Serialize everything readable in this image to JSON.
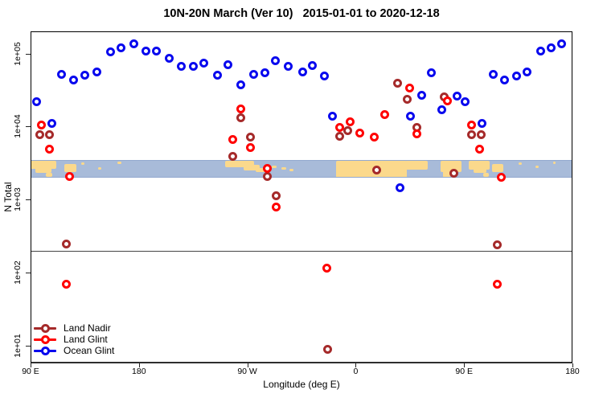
{
  "title": "10N-20N March (Ver 10)   2015-01-01 to 2020-12-18",
  "chart_data": {
    "type": "scatter",
    "title": "10N-20N March (Ver 10)   2015-01-01 to 2020-12-18",
    "xlabel": "Longitude (deg E)",
    "ylabel": "N Total",
    "y_scale": "log10",
    "ylim": [
      10,
      100000
    ],
    "y_ticks": [
      "1e+01",
      "1e+02",
      "1e+03",
      "1e+04",
      "1e+05"
    ],
    "x_axis_span_deg": 450,
    "x_ticks": [
      {
        "deg": 0,
        "label": "90 E"
      },
      {
        "deg": 90,
        "label": "180"
      },
      {
        "deg": 180,
        "label": "90 W"
      },
      {
        "deg": 270,
        "label": "0"
      },
      {
        "deg": 360,
        "label": "90 E"
      },
      {
        "deg": 450,
        "label": "180"
      }
    ],
    "reference_line_n": 200,
    "grid": "off",
    "legend_position": "bottom-left",
    "map_strip": {
      "ocean_color": "#A8BBD9",
      "land_color": "#FBD98C",
      "n_top": 3500,
      "n_bottom": 2000,
      "land_patches": [
        [
          0,
          21.4,
          0,
          10
        ],
        [
          4,
          13.4,
          7,
          8
        ],
        [
          12.7,
          5.4,
          15,
          5
        ],
        [
          28,
          10,
          4,
          10
        ],
        [
          42,
          2.7,
          2,
          3
        ],
        [
          56,
          2.7,
          8,
          3
        ],
        [
          72,
          3.3,
          1,
          3
        ],
        [
          161.6,
          24,
          0,
          8
        ],
        [
          176.9,
          13.4,
          5,
          7
        ],
        [
          186.9,
          12,
          9,
          5
        ],
        [
          200.3,
          4,
          6,
          3
        ],
        [
          208.3,
          4,
          8,
          3
        ],
        [
          215,
          3.3,
          10,
          3
        ],
        [
          253.7,
          58.8,
          0,
          22
        ],
        [
          311.1,
          18.7,
          0,
          11
        ],
        [
          340.5,
          17.4,
          0,
          14
        ],
        [
          342.5,
          6,
          12,
          9
        ],
        [
          363.9,
          17.4,
          0,
          11
        ],
        [
          367.9,
          10.7,
          7,
          8
        ],
        [
          375.9,
          4.7,
          15,
          5
        ],
        [
          383.2,
          9.4,
          4,
          10
        ],
        [
          405.2,
          2.7,
          2,
          3
        ],
        [
          419.2,
          2.7,
          6,
          3
        ],
        [
          433.9,
          2,
          1,
          3
        ]
      ]
    },
    "series": [
      {
        "name": "Land Nadir",
        "color": "#A52A2A",
        "points": [
          [
            8,
            7800
          ],
          [
            16,
            7700
          ],
          [
            29.4,
            245
          ],
          [
            167.6,
            3900
          ],
          [
            174.9,
            13300
          ],
          [
            182.9,
            7100
          ],
          [
            196.3,
            2100
          ],
          [
            204.3,
            1120
          ],
          [
            246.4,
            9
          ],
          [
            257,
            7400
          ],
          [
            263.7,
            8900
          ],
          [
            287.1,
            2550
          ],
          [
            305.1,
            39600
          ],
          [
            313.1,
            23900
          ],
          [
            321.1,
            9800
          ],
          [
            343.8,
            25200
          ],
          [
            351.8,
            2300
          ],
          [
            366.5,
            7800
          ],
          [
            374.5,
            7700
          ],
          [
            387.9,
            240
          ]
        ]
      },
      {
        "name": "Land Glint",
        "color": "#FF0000",
        "points": [
          [
            8.7,
            10600
          ],
          [
            15.4,
            4950
          ],
          [
            29.4,
            69
          ],
          [
            32.7,
            2100
          ],
          [
            167.6,
            6700
          ],
          [
            174.9,
            17600
          ],
          [
            182.9,
            5200
          ],
          [
            196.3,
            2700
          ],
          [
            204.3,
            800
          ],
          [
            245.7,
            117
          ],
          [
            257,
            9800
          ],
          [
            265.1,
            11700
          ],
          [
            273.7,
            8200
          ],
          [
            285.1,
            7200
          ],
          [
            294.4,
            14700
          ],
          [
            314.5,
            33300
          ],
          [
            321.1,
            8000
          ],
          [
            346.5,
            22700
          ],
          [
            366.5,
            10600
          ],
          [
            373.2,
            4950
          ],
          [
            387.9,
            69
          ],
          [
            391.2,
            2000
          ]
        ]
      },
      {
        "name": "Ocean Glint",
        "color": "#0909EE",
        "points": [
          [
            4.7,
            22000
          ],
          [
            17.4,
            11000
          ],
          [
            26,
            52000
          ],
          [
            35.4,
            43000
          ],
          [
            45.4,
            50000
          ],
          [
            55.4,
            56000
          ],
          [
            66.1,
            104000
          ],
          [
            74.8,
            118000
          ],
          [
            85.5,
            134000
          ],
          [
            96.1,
            107000
          ],
          [
            104.8,
            107000
          ],
          [
            115.5,
            85000
          ],
          [
            125.5,
            67000
          ],
          [
            134.9,
            67000
          ],
          [
            144.2,
            73000
          ],
          [
            154.9,
            50000
          ],
          [
            163.6,
            71000
          ],
          [
            174.3,
            37000
          ],
          [
            185.6,
            52000
          ],
          [
            194.3,
            54000
          ],
          [
            203.6,
            79000
          ],
          [
            214.3,
            67000
          ],
          [
            225.7,
            56000
          ],
          [
            234.3,
            69000
          ],
          [
            243.7,
            49000
          ],
          [
            251,
            14000
          ],
          [
            307.1,
            1440
          ],
          [
            315.8,
            13700
          ],
          [
            324.5,
            27000
          ],
          [
            333.1,
            55000
          ],
          [
            341.2,
            16800
          ],
          [
            354.5,
            26000
          ],
          [
            361.2,
            22000
          ],
          [
            375.2,
            11000
          ],
          [
            384.5,
            52000
          ],
          [
            393.9,
            43000
          ],
          [
            403.9,
            49000
          ],
          [
            412.6,
            56000
          ],
          [
            423.9,
            109000
          ],
          [
            432.6,
            120000
          ],
          [
            441.3,
            137000
          ]
        ]
      }
    ]
  },
  "legend": {
    "items": [
      {
        "label": "Land Nadir",
        "color": "#A52A2A"
      },
      {
        "label": "Land Glint",
        "color": "#FF0000"
      },
      {
        "label": "Ocean Glint",
        "color": "#0909EE"
      }
    ]
  }
}
